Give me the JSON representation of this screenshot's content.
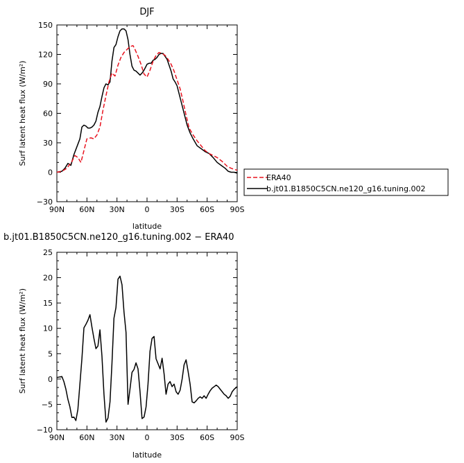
{
  "chart_data": [
    {
      "type": "line",
      "title": "DJF",
      "xlabel": "latitude",
      "ylabel": "Surf latent heat flux (W/m²)",
      "xlim": [
        90,
        -90
      ],
      "ylim": [
        -30,
        150
      ],
      "x_ticks": [
        90,
        60,
        30,
        0,
        -30,
        -60,
        -90
      ],
      "x_tick_labels": [
        "90N",
        "60N",
        "30N",
        "0",
        "30S",
        "60S",
        "90S"
      ],
      "y_ticks": [
        -30,
        0,
        30,
        60,
        90,
        120,
        150
      ],
      "y_tick_labels": [
        "−30",
        "0",
        "30",
        "60",
        "90",
        "120",
        "150"
      ],
      "legend": "outside-right",
      "series": [
        {
          "name": "ERA40",
          "color": "#e8131f",
          "dash": "dashed",
          "x": [
            90,
            85,
            80,
            75,
            72,
            69,
            66,
            63,
            60,
            56,
            53,
            50,
            47,
            44,
            41,
            38,
            35,
            32,
            29,
            26,
            23,
            20,
            17,
            14,
            12,
            9,
            6,
            3,
            0,
            -3,
            -6,
            -9,
            -12,
            -15,
            -18,
            -21,
            -24,
            -27,
            -30,
            -33,
            -36,
            -39,
            -42,
            -46,
            -50,
            -54,
            -58,
            -62,
            -66,
            -70,
            -75,
            -80,
            -84,
            -87,
            -90
          ],
          "y": [
            0,
            1,
            4,
            11,
            17,
            15,
            10,
            22,
            34,
            35,
            34,
            38,
            46,
            63,
            78,
            92,
            101,
            98,
            109,
            117,
            122,
            125,
            128,
            129,
            125,
            118,
            110,
            100,
            97,
            104,
            113,
            119,
            122,
            121,
            119,
            115,
            110,
            103,
            94,
            85,
            72,
            58,
            45,
            38,
            32,
            27,
            22,
            19,
            17,
            15,
            11,
            6,
            4,
            3,
            2
          ]
        },
        {
          "name": "b.jt01.B1850C5CN.ne120_g16.tuning.002",
          "color": "#000000",
          "dash": "solid",
          "x": [
            90,
            85,
            82,
            79,
            76,
            73,
            70,
            67,
            65,
            63,
            61,
            59,
            57,
            55,
            53,
            51,
            49,
            47,
            45,
            43,
            41,
            39,
            37,
            35,
            33,
            31,
            29,
            27,
            25,
            23,
            21,
            19,
            17,
            15,
            13,
            11,
            9,
            7,
            5,
            3,
            1,
            0,
            -2,
            -4,
            -6,
            -8,
            -10,
            -12,
            -14,
            -16,
            -18,
            -20,
            -22,
            -24,
            -26,
            -28,
            -30,
            -32,
            -34,
            -36,
            -38,
            -40,
            -43,
            -46,
            -50,
            -54,
            -58,
            -62,
            -66,
            -70,
            -74,
            -78,
            -81,
            -84,
            -87,
            -90
          ],
          "y": [
            0,
            1,
            4,
            9,
            7,
            18,
            26,
            34,
            46,
            48,
            47,
            45,
            45,
            46,
            48,
            52,
            61,
            67,
            77,
            86,
            90,
            89,
            92,
            113,
            127,
            130,
            138,
            144,
            146,
            146,
            144,
            135,
            120,
            108,
            104,
            103,
            101,
            99,
            101,
            104,
            108,
            110,
            111,
            111,
            114,
            115,
            117,
            120,
            121,
            121,
            118,
            115,
            109,
            103,
            95,
            92,
            88,
            80,
            72,
            64,
            56,
            48,
            40,
            34,
            27,
            24,
            21,
            19,
            15,
            10,
            7,
            4,
            1,
            0,
            0,
            -1
          ]
        }
      ]
    },
    {
      "type": "line",
      "title": "b.jt01.B1850C5CN.ne120_g16.tuning.002 − ERA40",
      "xlabel": "latitude",
      "ylabel": "Surf latent heat flux (W/m²)",
      "xlim": [
        90,
        -90
      ],
      "ylim": [
        -10,
        25
      ],
      "x_ticks": [
        90,
        60,
        30,
        0,
        -30,
        -60,
        -90
      ],
      "x_tick_labels": [
        "90N",
        "60N",
        "30N",
        "0",
        "30S",
        "60S",
        "90S"
      ],
      "y_ticks": [
        -10,
        -5,
        0,
        5,
        10,
        15,
        20,
        25
      ],
      "y_tick_labels": [
        "−10",
        "−5",
        "0",
        "5",
        "10",
        "15",
        "20",
        "25"
      ],
      "series": [
        {
          "color": "#000000",
          "dash": "solid",
          "x": [
            90,
            85,
            83,
            81,
            79,
            77,
            75,
            73,
            71,
            69,
            67,
            65,
            63,
            61,
            59,
            57,
            55,
            53,
            51,
            49,
            47,
            45,
            43,
            41,
            39,
            37,
            35,
            33,
            31,
            29,
            27,
            25,
            23,
            21,
            19,
            17,
            15,
            13,
            11,
            9,
            7,
            5,
            3,
            1,
            -1,
            -3,
            -5,
            -7,
            -9,
            -11,
            -13,
            -15,
            -17,
            -19,
            -21,
            -23,
            -25,
            -27,
            -29,
            -31,
            -33,
            -35,
            -37,
            -39,
            -41,
            -43,
            -45,
            -47,
            -49,
            -51,
            -53,
            -55,
            -57,
            -59,
            -61,
            -63,
            -65,
            -67,
            -69,
            -71,
            -73,
            -75,
            -77,
            -79,
            -81,
            -83,
            -85,
            -87,
            -90
          ],
          "y": [
            0.3,
            0.5,
            -0.5,
            -2,
            -4,
            -5.5,
            -7.6,
            -7.5,
            -8.2,
            -6,
            -1,
            4,
            10.1,
            10.8,
            11.6,
            12.7,
            10.2,
            8,
            6,
            6.5,
            9.7,
            4.5,
            -3,
            -8.5,
            -7.7,
            -4.5,
            3,
            12,
            14.1,
            19.7,
            20.3,
            18.6,
            13.2,
            9.2,
            -5,
            -2,
            1.3,
            1.9,
            3.2,
            2,
            -2.5,
            -7.8,
            -7.5,
            -5.5,
            -1,
            5.5,
            8,
            8.4,
            4,
            3,
            2,
            4.1,
            1,
            -3,
            -1,
            -0.5,
            -1.5,
            -1,
            -2.5,
            -3,
            -2.2,
            0,
            2.8,
            3.8,
            1.5,
            -1,
            -4.5,
            -4.7,
            -4.3,
            -3.8,
            -3.5,
            -3.8,
            -3.3,
            -3.8,
            -3,
            -2.3,
            -1.8,
            -1.5,
            -1.2,
            -1.5,
            -2,
            -2.5,
            -3,
            -3.3,
            -3.8,
            -3.4,
            -2.5,
            -2,
            -1.5
          ]
        }
      ]
    }
  ]
}
